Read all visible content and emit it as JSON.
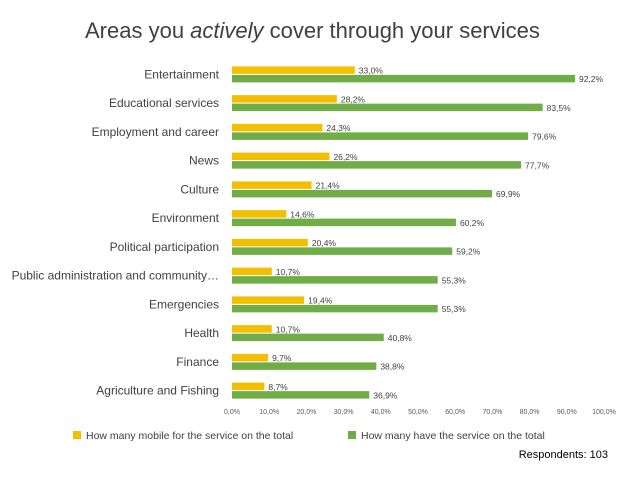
{
  "title": {
    "prefix": "Areas you ",
    "emphasis": "actively",
    "suffix": " cover through your services"
  },
  "respondents": "Respondents: 103",
  "colors": {
    "mobile": "#F2C000",
    "have": "#70AD47",
    "axis_text": "#595959",
    "label_text": "#404040"
  },
  "chart_data": {
    "type": "bar",
    "orientation": "horizontal",
    "title": "Areas you actively cover through your services",
    "xlabel": "",
    "ylabel": "",
    "xlim": [
      0,
      100
    ],
    "x_ticks": [
      "0,0%",
      "10,0%",
      "20,0%",
      "30,0%",
      "40,0%",
      "50,0%",
      "60,0%",
      "70,0%",
      "80,0%",
      "90,0%",
      "100,0%"
    ],
    "grid": false,
    "legend_position": "bottom",
    "categories": [
      "Entertainment",
      "Educational services",
      "Employment and career",
      "News",
      "Culture",
      "Environment",
      "Political participation",
      "Public administration and community…",
      "Emergencies",
      "Health",
      "Finance",
      "Agriculture and Fishing"
    ],
    "series": [
      {
        "name": "How many mobile for the service on the total",
        "values": [
          33.0,
          28.2,
          24.3,
          26.2,
          21.4,
          14.6,
          20.4,
          10.7,
          19.4,
          10.7,
          9.7,
          8.7
        ],
        "labels": [
          "33,0%",
          "28,2%",
          "24,3%",
          "26,2%",
          "21,4%",
          "14,6%",
          "20,4%",
          "10,7%",
          "19,4%",
          "10,7%",
          "9,7%",
          "8,7%"
        ]
      },
      {
        "name": "How many have the service on the total",
        "values": [
          92.2,
          83.5,
          79.6,
          77.7,
          69.9,
          60.2,
          59.2,
          55.3,
          55.3,
          40.8,
          38.8,
          36.9
        ],
        "labels": [
          "92,2%",
          "83,5%",
          "79,6%",
          "77,7%",
          "69,9%",
          "60,2%",
          "59,2%",
          "55,3%",
          "55,3%",
          "40,8%",
          "38,8%",
          "36,9%"
        ]
      }
    ]
  }
}
